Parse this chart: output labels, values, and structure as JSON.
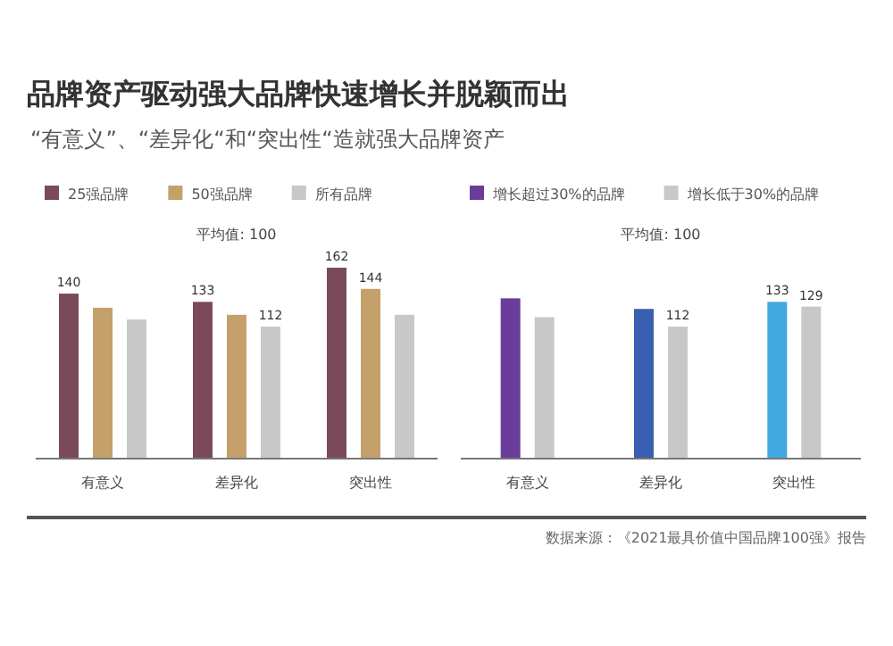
{
  "chart_data": [
    {
      "type": "bar",
      "title": "品牌资产驱动强大品牌快速增长并脱颖而出",
      "subtitle": "“有意义”、“差异化“和“突出性“造就强大品牌资产",
      "annotations": [
        "平均值: 100"
      ],
      "categories": [
        "有意义",
        "差异化",
        "突出性"
      ],
      "tick_labels": "x",
      "legend": "top left",
      "series": [
        {
          "name": "25强品牌",
          "color": "#7a4a5a",
          "values": [
            140,
            133,
            162
          ],
          "value_labels": [
            "140",
            "133",
            "162"
          ]
        },
        {
          "name": "50强品牌",
          "color": "#c4a06a",
          "values": [
            128,
            122,
            144
          ],
          "value_labels": [
            null,
            null,
            "144"
          ]
        },
        {
          "name": "所有品牌",
          "color": "#c8c8c8",
          "values": [
            118,
            112,
            122
          ],
          "value_labels": [
            null,
            "112",
            null
          ]
        }
      ]
    },
    {
      "type": "bar",
      "annotations": [
        "平均值: 100",
        "数据来源：《2021最具价值中国品牌100强》报告"
      ],
      "categories": [
        "有意义",
        "差异化",
        "突出性"
      ],
      "tick_labels": "x",
      "legend": "top",
      "series": [
        {
          "name": "增长超过30%的品牌",
          "color": "#6a3d9a",
          "colors": [
            "#6a3d9a",
            "#3a5fb0",
            "#41a8e0"
          ],
          "values": [
            136,
            127,
            133
          ],
          "value_labels": [
            null,
            null,
            "133"
          ]
        },
        {
          "name": "增长低于30%的品牌",
          "color": "#c8c8c8",
          "values": [
            120,
            112,
            129
          ],
          "value_labels": [
            null,
            "112",
            "129"
          ]
        }
      ]
    }
  ]
}
